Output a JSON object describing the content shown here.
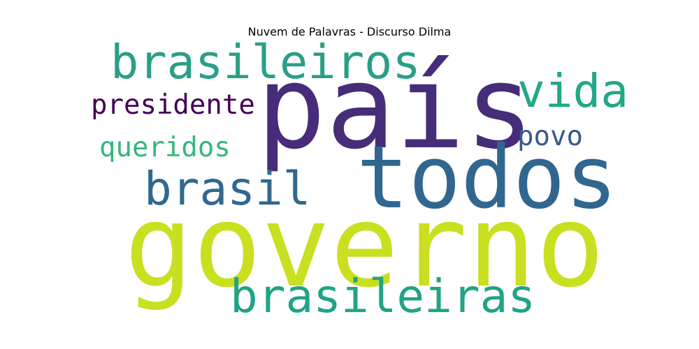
{
  "title": "Nuvem de Palavras - Discurso Dilma",
  "words": [
    {
      "text": "país",
      "color": "#472c7a"
    },
    {
      "text": "todos",
      "color": "#31678e"
    },
    {
      "text": "governo",
      "color": "#c8e020"
    },
    {
      "text": "brasileiros",
      "color": "#2a9f88"
    },
    {
      "text": "vida",
      "color": "#22a884"
    },
    {
      "text": "presidente",
      "color": "#440154"
    },
    {
      "text": "povo",
      "color": "#38598c"
    },
    {
      "text": "queridos",
      "color": "#35b779"
    },
    {
      "text": "brasil",
      "color": "#31688e"
    },
    {
      "text": "brasileiras",
      "color": "#20a386"
    }
  ]
}
